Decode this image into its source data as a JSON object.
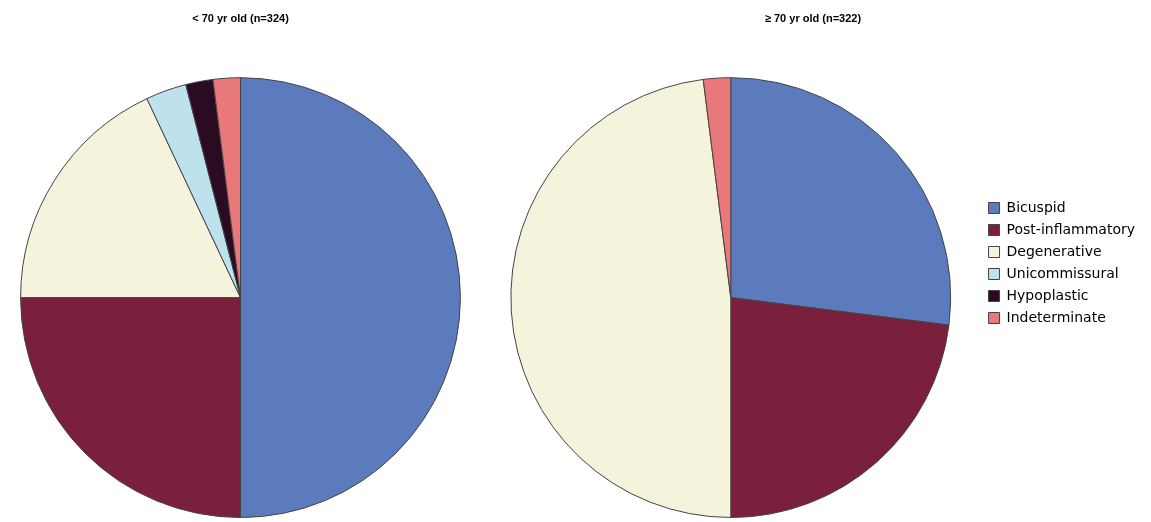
{
  "chart_data": [
    {
      "type": "pie",
      "title": "< 70 yr old (n=324)",
      "categories": [
        null,
        null,
        null,
        null,
        null,
        null
      ],
      "values": [
        50,
        25,
        18,
        3,
        2,
        2
      ],
      "colors": [
        "#5b7bbd",
        "#7a1f3c",
        "#f6f3dc",
        "#bde2ee",
        "#2a0b22",
        "#e8787a"
      ],
      "legend": false
    },
    {
      "type": "pie",
      "title": "≥ 70 yr old (n=322)",
      "categories": [
        "Bicuspid",
        "Post-inflammatory",
        "Degenerative",
        "Unicommissural",
        "Hypoplastic",
        "Indeterminate"
      ],
      "values": [
        27,
        23,
        48,
        0,
        0,
        2
      ],
      "colors": [
        "#5b7bbd",
        "#7a1f3c",
        "#f6f3dc",
        "#bde2ee",
        "#2a0b22",
        "#e8787a"
      ],
      "legend": "right"
    }
  ]
}
